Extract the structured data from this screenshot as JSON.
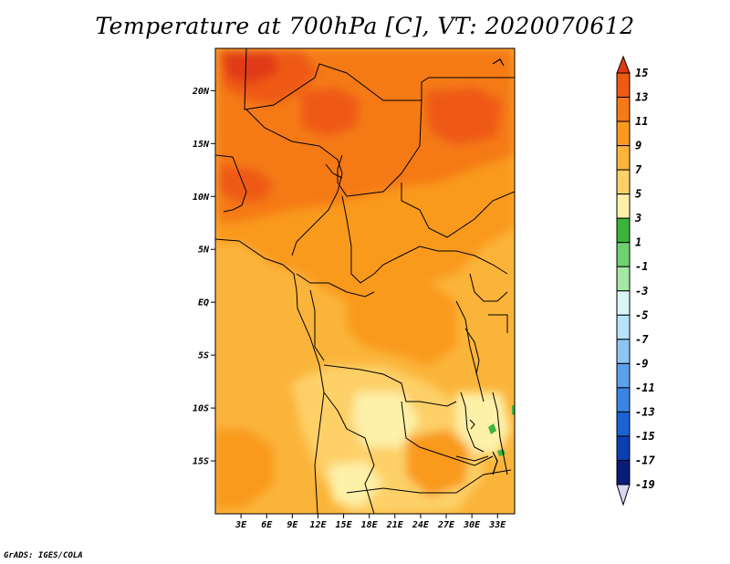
{
  "title": "Temperature at 700hPa [C], VT: 2020070612",
  "credit": "GrADS: IGES/COLA",
  "map": {
    "region": "Central & Southern Africa",
    "lon_range": [
      0,
      35
    ],
    "lat_range": [
      -20,
      24
    ],
    "lat_ticks": [
      {
        "value": 20,
        "label": "20N"
      },
      {
        "value": 15,
        "label": "15N"
      },
      {
        "value": 10,
        "label": "10N"
      },
      {
        "value": 5,
        "label": "5N"
      },
      {
        "value": 0,
        "label": "EQ"
      },
      {
        "value": -5,
        "label": "5S"
      },
      {
        "value": -10,
        "label": "10S"
      },
      {
        "value": -15,
        "label": "15S"
      }
    ],
    "lon_ticks": [
      {
        "value": 3,
        "label": "3E"
      },
      {
        "value": 6,
        "label": "6E"
      },
      {
        "value": 9,
        "label": "9E"
      },
      {
        "value": 12,
        "label": "12E"
      },
      {
        "value": 15,
        "label": "15E"
      },
      {
        "value": 18,
        "label": "18E"
      },
      {
        "value": 21,
        "label": "21E"
      },
      {
        "value": 24,
        "label": "24E"
      },
      {
        "value": 27,
        "label": "27E"
      },
      {
        "value": 30,
        "label": "30E"
      },
      {
        "value": 33,
        "label": "33E"
      }
    ]
  },
  "colorbar": {
    "labels": [
      "15",
      "13",
      "11",
      "9",
      "7",
      "5",
      "3",
      "1",
      "-1",
      "-3",
      "-5",
      "-7",
      "-9",
      "-11",
      "-13",
      "-15",
      "-17",
      "-19"
    ],
    "colors": [
      "#e03a12",
      "#ee5a14",
      "#f57a16",
      "#f99a1e",
      "#fbb43a",
      "#fdd068",
      "#fdf0a8",
      "#3cb43c",
      "#6ed26e",
      "#a6e6a6",
      "#d8f6f6",
      "#b8e2fa",
      "#8cc4f4",
      "#5aa0ec",
      "#3a84e4",
      "#1c62d2",
      "#0a40b0",
      "#081c78",
      "#050a48"
    ],
    "top_color": "#e03a12",
    "bottom_color": "#d8d8f4"
  }
}
